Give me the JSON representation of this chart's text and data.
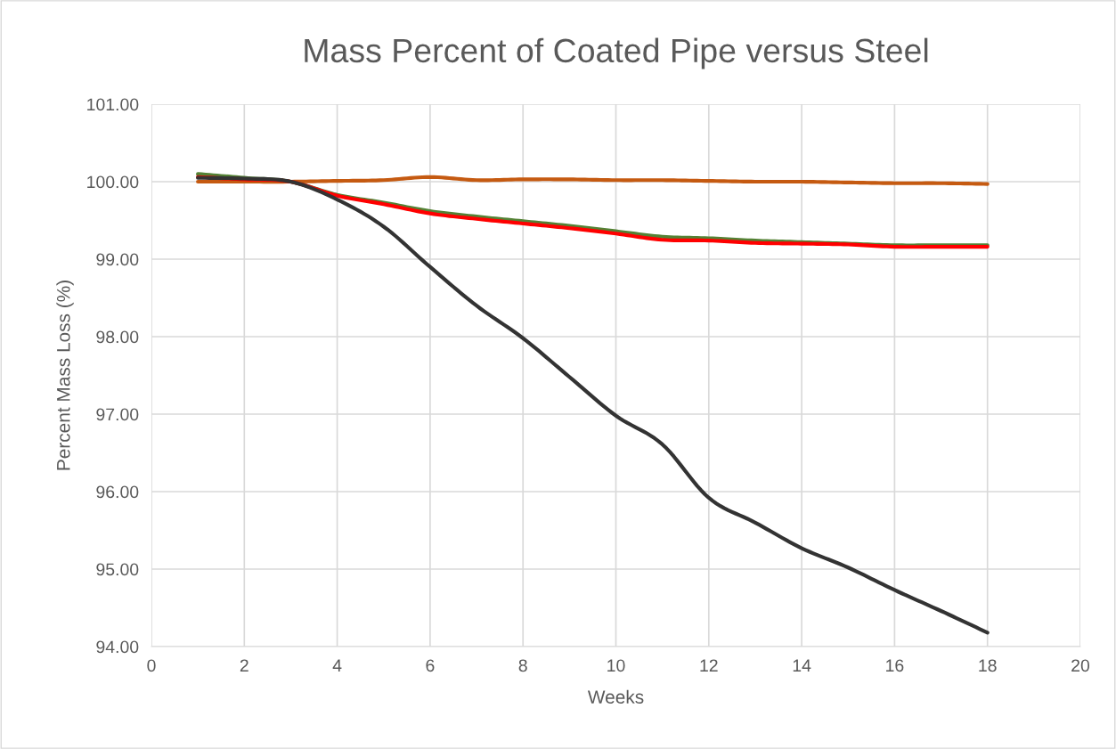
{
  "chart_data": {
    "type": "line",
    "title": "Mass Percent of Coated Pipe versus Steel",
    "xlabel": "Weeks",
    "ylabel": "Percent Mass Loss (%)",
    "x": [
      1,
      2,
      3,
      4,
      5,
      6,
      7,
      8,
      9,
      10,
      11,
      12,
      13,
      14,
      15,
      16,
      17,
      18
    ],
    "series": [
      {
        "color": "#c55a11",
        "values": [
          100.0,
          100.0,
          100.0,
          100.01,
          100.02,
          100.06,
          100.02,
          100.03,
          100.03,
          100.02,
          100.02,
          100.01,
          100.0,
          100.0,
          99.99,
          99.98,
          99.98,
          99.97
        ]
      },
      {
        "color": "#548235",
        "values": [
          100.1,
          100.05,
          100.0,
          99.83,
          99.73,
          99.62,
          99.55,
          99.49,
          99.43,
          99.36,
          99.29,
          99.27,
          99.24,
          99.22,
          99.2,
          99.18,
          99.18,
          99.18
        ]
      },
      {
        "color": "#ff0000",
        "values": [
          100.06,
          100.03,
          100.0,
          99.82,
          99.71,
          99.59,
          99.52,
          99.46,
          99.4,
          99.33,
          99.25,
          99.24,
          99.21,
          99.2,
          99.19,
          99.16,
          99.16,
          99.16
        ]
      },
      {
        "color": "#333333",
        "values": [
          100.05,
          100.04,
          100.0,
          99.77,
          99.42,
          98.9,
          98.4,
          97.98,
          97.48,
          96.98,
          96.61,
          95.92,
          95.6,
          95.27,
          95.02,
          94.73,
          94.46,
          94.18
        ]
      }
    ],
    "xlim": [
      0,
      20
    ],
    "xticks": [
      0,
      2,
      4,
      6,
      8,
      10,
      12,
      14,
      16,
      18,
      20
    ],
    "ylim": [
      94,
      101
    ],
    "yticks": [
      {
        "value": 94,
        "label": "94.00"
      },
      {
        "value": 95,
        "label": "95.00"
      },
      {
        "value": 96,
        "label": "96.00"
      },
      {
        "value": 97,
        "label": "97.00"
      },
      {
        "value": 98,
        "label": "98.00"
      },
      {
        "value": 99,
        "label": "99.00"
      },
      {
        "value": 100,
        "label": "100.00"
      },
      {
        "value": 101,
        "label": "101.00"
      }
    ],
    "grid": true,
    "line_style": "solid"
  }
}
